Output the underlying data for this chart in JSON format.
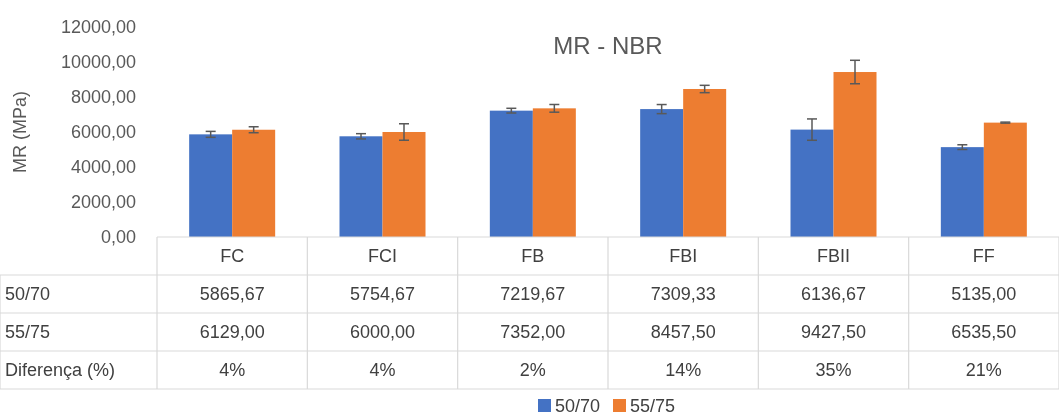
{
  "chart_data": {
    "type": "bar",
    "title": "MR - NBR",
    "ylabel": "MR (MPa)",
    "categories": [
      "FC",
      "FCI",
      "FB",
      "FBI",
      "FBII",
      "FF"
    ],
    "series": [
      {
        "name": "50/70",
        "color": "#4472c4",
        "values": [
          5865.67,
          5754.67,
          7219.67,
          7309.33,
          6136.67,
          5135.0
        ],
        "errors": [
          170,
          150,
          135,
          260,
          610,
          135
        ],
        "value_labels": [
          "5865,67",
          "5754,67",
          "7219,67",
          "7309,33",
          "6136,67",
          "5135,00"
        ]
      },
      {
        "name": "55/75",
        "color": "#ed7d31",
        "values": [
          6129.0,
          6000.0,
          7352.0,
          8457.5,
          9427.5,
          6535.5
        ],
        "errors": [
          170,
          470,
          220,
          210,
          670,
          30
        ],
        "value_labels": [
          "6129,00",
          "6000,00",
          "7352,00",
          "8457,50",
          "9427,50",
          "6535,50"
        ]
      }
    ],
    "ylim": [
      0,
      12000
    ],
    "yticks": [
      {
        "value": 0,
        "label": "0,00"
      },
      {
        "value": 2000,
        "label": "2000,00"
      },
      {
        "value": 4000,
        "label": "4000,00"
      },
      {
        "value": 6000,
        "label": "6000,00"
      },
      {
        "value": 8000,
        "label": "8000,00"
      },
      {
        "value": 10000,
        "label": "10000,00"
      },
      {
        "value": 12000,
        "label": "12000,00"
      }
    ],
    "annotations": [
      "Diferença (%)",
      "4%",
      "4%",
      "2%",
      "14%",
      "35%",
      "21%"
    ],
    "legend": "bottom",
    "grid": false
  }
}
